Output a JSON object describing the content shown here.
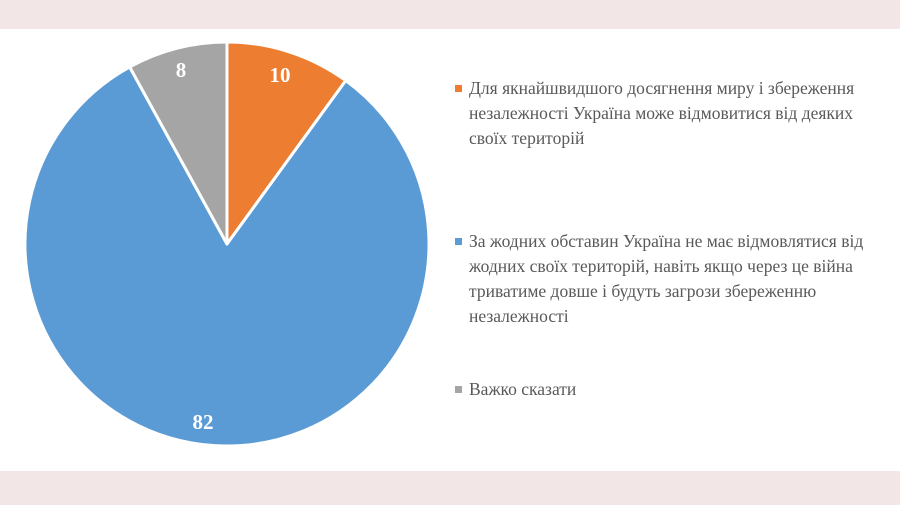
{
  "chart_data": {
    "type": "pie",
    "title": "",
    "categories": [
      "Для якнайшвидшого досягнення миру і збереження незалежності Україна може відмовитися від деяких своїх територій",
      "За жодних обставин Україна не має відмовлятися від жодних своїх територій, навіть якщо через це війна триватиме довше і будуть загрози збереженню незалежності",
      "Важко сказати"
    ],
    "values": [
      10,
      82,
      8
    ],
    "colors": [
      "#ed7d31",
      "#5b9bd5",
      "#a5a5a5"
    ],
    "data_labels": [
      "10",
      "82",
      "8"
    ],
    "start_angle_deg": 0,
    "direction": "clockwise",
    "legend_position": "right"
  },
  "legend": {
    "items": [
      {
        "color": "#ed7d31",
        "lines": [
          "Для якнайшвидшого досягнення миру і збереження",
          "незалежності Україна може відмовитися від деяких",
          "своїх територій"
        ]
      },
      {
        "color": "#5b9bd5",
        "lines": [
          "За жодних обставин Україна не має відмовлятися від",
          "жодних своїх територій, навіть якщо через це війна",
          "триватиме довше і будуть загрози збереженню",
          "незалежності"
        ]
      },
      {
        "color": "#a5a5a5",
        "lines": [
          "Важко сказати"
        ]
      }
    ]
  },
  "colors": {
    "band": "#f3e6e6",
    "background": "#ffffff",
    "legend_text": "#595959"
  }
}
